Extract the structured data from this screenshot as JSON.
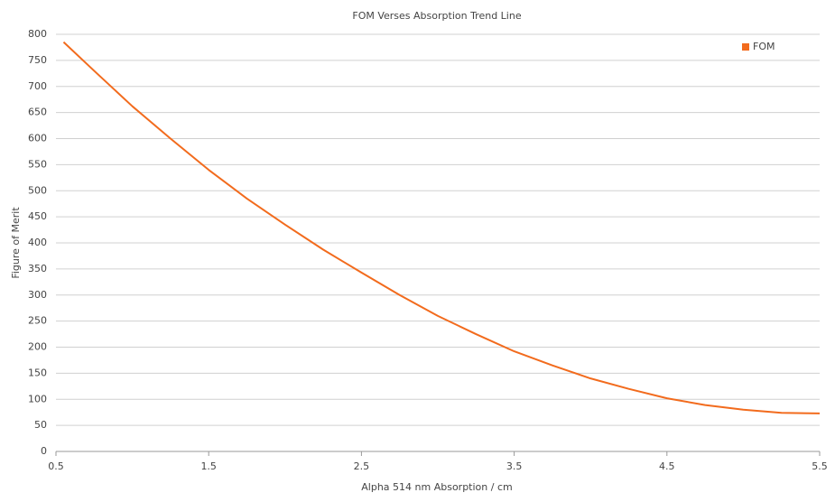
{
  "chart_data": {
    "type": "line",
    "title": "FOM Verses Absorption Trend Line",
    "x_label": "Alpha 514 nm Absorption  / cm",
    "y_label": "Figure of Merit",
    "x": [
      0.55,
      0.75,
      1,
      1.25,
      1.5,
      1.75,
      2,
      2.25,
      2.5,
      2.75,
      3,
      3.25,
      3.5,
      3.75,
      4,
      4.25,
      4.5,
      4.75,
      5,
      5.25,
      5.5
    ],
    "series": [
      {
        "name": "FOM",
        "color": "#f26b1d",
        "values": [
          785,
          730,
          662,
          600,
          540,
          485,
          435,
          387,
          343,
          300,
          260,
          225,
          192,
          165,
          140,
          120,
          102,
          89,
          80,
          74,
          73
        ]
      }
    ],
    "xlim": [
      0.5,
      5.5
    ],
    "xticks": [
      0.5,
      1.5,
      2.5,
      3.5,
      4.5,
      5.5
    ],
    "ylim": [
      0,
      800
    ],
    "yticks": [
      0,
      50,
      100,
      150,
      200,
      250,
      300,
      350,
      400,
      450,
      500,
      550,
      600,
      650,
      700,
      750,
      800
    ],
    "grid": true,
    "legend": "top-right"
  }
}
